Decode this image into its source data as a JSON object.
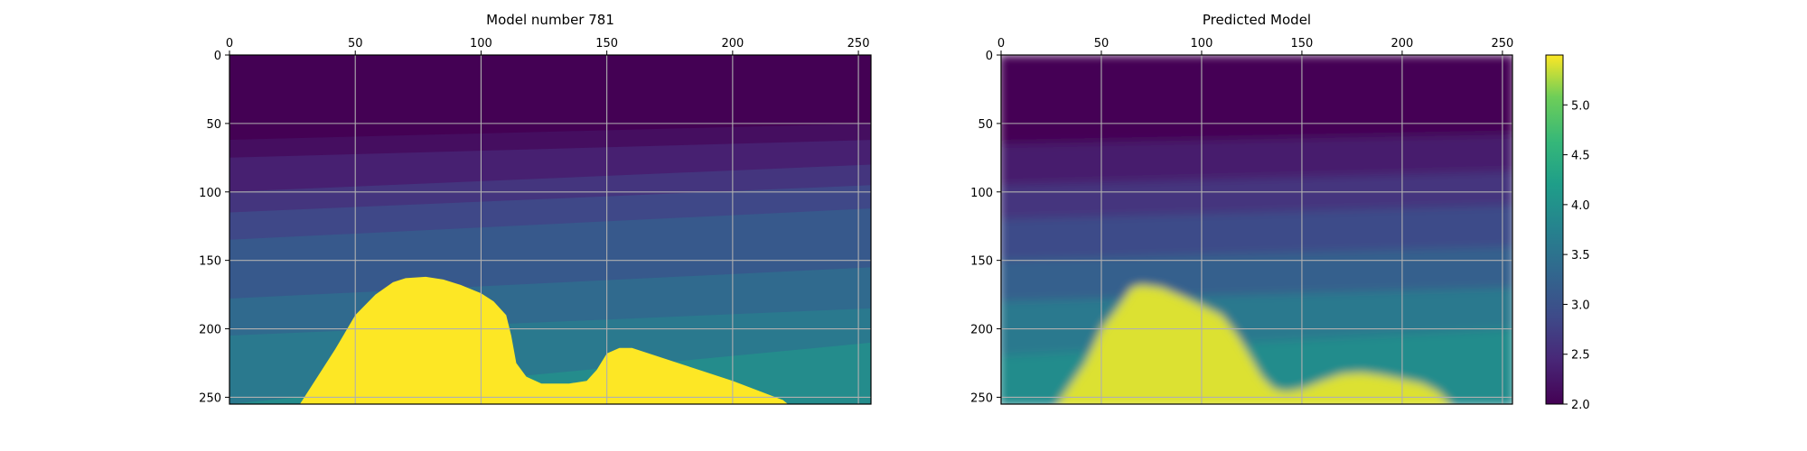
{
  "chart_data": [
    {
      "type": "heatmap",
      "title": "Model number 781",
      "x_range": [
        0,
        255
      ],
      "y_range": [
        0,
        255
      ],
      "y_inverted": true,
      "x_ticks": [
        0,
        50,
        100,
        150,
        200,
        250
      ],
      "y_ticks": [
        0,
        50,
        100,
        150,
        200,
        250
      ],
      "grid": true,
      "colormap": "viridis",
      "layers": [
        {
          "velocity": 2.0,
          "top_depth": [
            0,
            0
          ]
        },
        {
          "velocity": 2.15,
          "top_depth": [
            62,
            50
          ]
        },
        {
          "velocity": 2.35,
          "top_depth": [
            75,
            62
          ]
        },
        {
          "velocity": 2.6,
          "top_depth": [
            100,
            80
          ]
        },
        {
          "velocity": 2.85,
          "top_depth": [
            115,
            95
          ]
        },
        {
          "velocity": 3.1,
          "top_depth": [
            135,
            112
          ]
        },
        {
          "velocity": 3.35,
          "top_depth": [
            178,
            155
          ]
        },
        {
          "velocity": 3.6,
          "top_depth": [
            205,
            185
          ]
        },
        {
          "velocity": 3.9,
          "top_depth": [
            255,
            210
          ]
        }
      ],
      "salt_body": {
        "velocity": 5.5,
        "top_profile": [
          [
            28,
            255
          ],
          [
            35,
            235
          ],
          [
            42,
            215
          ],
          [
            50,
            190
          ],
          [
            58,
            175
          ],
          [
            65,
            166
          ],
          [
            70,
            163
          ],
          [
            78,
            162
          ],
          [
            85,
            164
          ],
          [
            92,
            168
          ],
          [
            100,
            174
          ],
          [
            105,
            180
          ],
          [
            110,
            190
          ],
          [
            112,
            205
          ],
          [
            114,
            225
          ],
          [
            118,
            235
          ],
          [
            124,
            240
          ],
          [
            135,
            240
          ],
          [
            142,
            238
          ],
          [
            146,
            230
          ],
          [
            150,
            218
          ],
          [
            155,
            214
          ],
          [
            160,
            214
          ],
          [
            170,
            220
          ],
          [
            180,
            226
          ],
          [
            190,
            232
          ],
          [
            200,
            238
          ],
          [
            210,
            245
          ],
          [
            220,
            252
          ],
          [
            222,
            255
          ]
        ]
      }
    },
    {
      "type": "heatmap",
      "title": "Predicted Model",
      "x_range": [
        0,
        255
      ],
      "y_range": [
        0,
        255
      ],
      "y_inverted": true,
      "x_ticks": [
        0,
        50,
        100,
        150,
        200,
        250
      ],
      "y_ticks": [
        0,
        50,
        100,
        150,
        200,
        250
      ],
      "grid": true,
      "colormap": "viridis",
      "smooth": true,
      "layers": [
        {
          "velocity": 2.0,
          "top_depth": [
            0,
            0
          ]
        },
        {
          "velocity": 2.3,
          "top_depth": [
            65,
            58
          ]
        },
        {
          "velocity": 2.6,
          "top_depth": [
            95,
            85
          ]
        },
        {
          "velocity": 2.9,
          "top_depth": [
            120,
            110
          ]
        },
        {
          "velocity": 3.2,
          "top_depth": [
            150,
            140
          ]
        },
        {
          "velocity": 3.6,
          "top_depth": [
            180,
            170
          ]
        },
        {
          "velocity": 3.9,
          "top_depth": [
            220,
            200
          ]
        }
      ],
      "salt_body": {
        "velocity": 5.4,
        "top_profile": [
          [
            28,
            255
          ],
          [
            35,
            240
          ],
          [
            42,
            225
          ],
          [
            50,
            200
          ],
          [
            58,
            185
          ],
          [
            65,
            170
          ],
          [
            70,
            168
          ],
          [
            80,
            170
          ],
          [
            90,
            176
          ],
          [
            100,
            183
          ],
          [
            110,
            190
          ],
          [
            118,
            205
          ],
          [
            124,
            220
          ],
          [
            130,
            235
          ],
          [
            136,
            244
          ],
          [
            142,
            246
          ],
          [
            150,
            244
          ],
          [
            160,
            238
          ],
          [
            170,
            233
          ],
          [
            180,
            232
          ],
          [
            190,
            234
          ],
          [
            200,
            237
          ],
          [
            210,
            240
          ],
          [
            218,
            246
          ],
          [
            224,
            255
          ]
        ]
      }
    },
    {
      "type": "colorbar",
      "colormap": "viridis",
      "range": [
        2.0,
        5.5
      ],
      "ticks": [
        2.0,
        2.5,
        3.0,
        3.5,
        4.0,
        4.5,
        5.0
      ],
      "tick_labels": [
        "2.0",
        "2.5",
        "3.0",
        "3.5",
        "4.0",
        "4.5",
        "5.0"
      ]
    }
  ]
}
